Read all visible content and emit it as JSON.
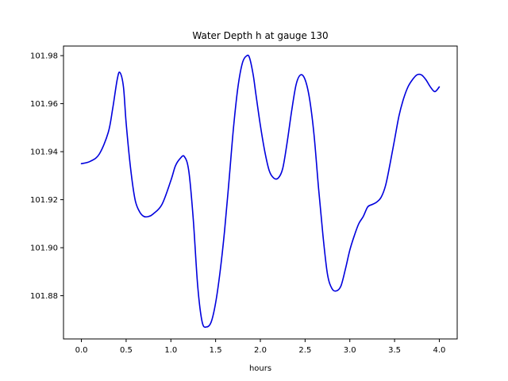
{
  "chart_data": {
    "type": "line",
    "title": "Water Depth h at gauge 130",
    "xlabel": "hours",
    "ylabel": "",
    "xlim": [
      -0.2,
      4.2
    ],
    "ylim": [
      101.862,
      101.984
    ],
    "xticks": [
      0.0,
      0.5,
      1.0,
      1.5,
      2.0,
      2.5,
      3.0,
      3.5,
      4.0
    ],
    "xtick_labels": [
      "0.0",
      "0.5",
      "1.0",
      "1.5",
      "2.0",
      "2.5",
      "3.0",
      "3.5",
      "4.0"
    ],
    "yticks": [
      101.88,
      101.9,
      101.92,
      101.94,
      101.96,
      101.98
    ],
    "ytick_labels": [
      "101.88",
      "101.90",
      "101.92",
      "101.94",
      "101.96",
      "101.98"
    ],
    "grid": false,
    "series": [
      {
        "color": "#0000dd",
        "x": [
          0.0,
          0.1,
          0.2,
          0.3,
          0.35,
          0.4,
          0.43,
          0.47,
          0.5,
          0.55,
          0.6,
          0.65,
          0.7,
          0.75,
          0.8,
          0.9,
          1.0,
          1.05,
          1.1,
          1.15,
          1.2,
          1.25,
          1.3,
          1.35,
          1.4,
          1.45,
          1.5,
          1.55,
          1.6,
          1.65,
          1.7,
          1.75,
          1.8,
          1.85,
          1.88,
          1.92,
          1.95,
          2.0,
          2.05,
          2.1,
          2.15,
          2.2,
          2.25,
          2.3,
          2.35,
          2.4,
          2.45,
          2.5,
          2.55,
          2.6,
          2.65,
          2.7,
          2.75,
          2.8,
          2.85,
          2.9,
          2.95,
          3.0,
          3.05,
          3.1,
          3.15,
          3.2,
          3.25,
          3.3,
          3.35,
          3.4,
          3.45,
          3.5,
          3.55,
          3.6,
          3.65,
          3.7,
          3.75,
          3.8,
          3.85,
          3.9,
          3.95,
          4.0
        ],
        "y": [
          101.935,
          101.936,
          101.939,
          101.948,
          101.958,
          101.97,
          101.973,
          101.967,
          101.952,
          101.933,
          101.92,
          101.915,
          101.913,
          101.913,
          101.914,
          101.918,
          101.928,
          101.934,
          101.937,
          101.938,
          101.932,
          101.912,
          101.884,
          101.869,
          101.867,
          101.869,
          101.877,
          101.89,
          101.907,
          101.928,
          101.95,
          101.967,
          101.977,
          101.98,
          101.979,
          101.972,
          101.964,
          101.951,
          101.94,
          101.932,
          101.929,
          101.929,
          101.933,
          101.944,
          101.957,
          101.968,
          101.972,
          101.97,
          101.962,
          101.947,
          101.925,
          101.905,
          101.889,
          101.883,
          101.882,
          101.884,
          101.891,
          101.899,
          101.905,
          101.91,
          101.913,
          101.917,
          101.918,
          101.919,
          101.921,
          101.926,
          101.935,
          101.945,
          101.955,
          101.962,
          101.967,
          101.97,
          101.972,
          101.972,
          101.97,
          101.967,
          101.965,
          101.967
        ]
      }
    ]
  }
}
